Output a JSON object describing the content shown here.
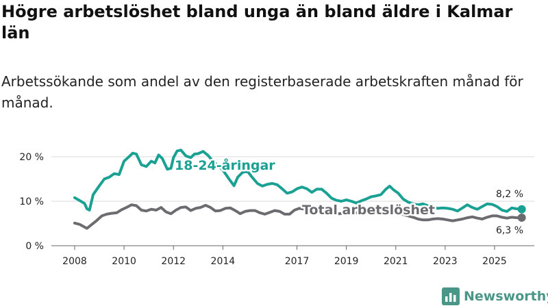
{
  "title": "Högre arbetslöshet bland unga än bland äldre i Kalmar län",
  "subtitle": "Arbetssökande som andel av den registerbaserade arbetskraften månad för månad.",
  "brand": {
    "name": "Newsworthy",
    "icon": "bar-chart-logo-icon",
    "color": "#4a9688"
  },
  "chart_data": {
    "type": "line",
    "title": "Högre arbetslöshet bland unga än bland äldre i Kalmar län",
    "ylim": [
      0,
      20.5
    ],
    "xlim": [
      2008.0,
      2026.3
    ],
    "yticks": [
      {
        "value": 0,
        "label": "0 %"
      },
      {
        "value": 10,
        "label": "10 %"
      },
      {
        "value": 20,
        "label": "20 %"
      }
    ],
    "xticks": [
      {
        "value": 2008,
        "label": "2008"
      },
      {
        "value": 2010,
        "label": "2010"
      },
      {
        "value": 2012,
        "label": "2012"
      },
      {
        "value": 2014,
        "label": "2014"
      },
      {
        "value": 2017,
        "label": "2017"
      },
      {
        "value": 2019,
        "label": "2019"
      },
      {
        "value": 2021,
        "label": "2021"
      },
      {
        "value": 2023,
        "label": "2023"
      },
      {
        "value": 2025,
        "label": "2025"
      }
    ],
    "grid": true,
    "series": [
      {
        "name": "18-24-åringar",
        "color": "#1aa194",
        "end_label": "8,2 %",
        "points": [
          [
            2008.0,
            10.8
          ],
          [
            2008.25,
            10.0
          ],
          [
            2008.4,
            9.5
          ],
          [
            2008.5,
            8.3
          ],
          [
            2008.6,
            8.0
          ],
          [
            2008.75,
            11.5
          ],
          [
            2009.0,
            13.5
          ],
          [
            2009.2,
            15.0
          ],
          [
            2009.4,
            15.4
          ],
          [
            2009.6,
            16.2
          ],
          [
            2009.8,
            16.0
          ],
          [
            2010.0,
            19.0
          ],
          [
            2010.2,
            20.0
          ],
          [
            2010.35,
            20.8
          ],
          [
            2010.5,
            20.6
          ],
          [
            2010.7,
            18.2
          ],
          [
            2010.9,
            17.8
          ],
          [
            2011.1,
            19.0
          ],
          [
            2011.25,
            18.6
          ],
          [
            2011.4,
            20.4
          ],
          [
            2011.55,
            19.6
          ],
          [
            2011.75,
            17.2
          ],
          [
            2011.9,
            17.4
          ],
          [
            2012.0,
            19.8
          ],
          [
            2012.15,
            21.3
          ],
          [
            2012.3,
            21.5
          ],
          [
            2012.5,
            20.2
          ],
          [
            2012.7,
            19.8
          ],
          [
            2012.85,
            20.6
          ],
          [
            2013.0,
            20.7
          ],
          [
            2013.2,
            21.2
          ],
          [
            2013.4,
            20.3
          ],
          [
            2013.6,
            19.0
          ],
          [
            2013.8,
            18.0
          ],
          [
            2014.0,
            17.0
          ],
          [
            2014.25,
            15.0
          ],
          [
            2014.45,
            13.5
          ],
          [
            2014.6,
            15.4
          ],
          [
            2014.8,
            16.5
          ],
          [
            2015.0,
            16.7
          ],
          [
            2015.2,
            15.3
          ],
          [
            2015.4,
            14.0
          ],
          [
            2015.6,
            13.4
          ],
          [
            2015.8,
            13.8
          ],
          [
            2016.0,
            14.0
          ],
          [
            2016.2,
            13.7
          ],
          [
            2016.4,
            12.8
          ],
          [
            2016.6,
            11.8
          ],
          [
            2016.8,
            12.1
          ],
          [
            2017.0,
            12.8
          ],
          [
            2017.2,
            13.2
          ],
          [
            2017.4,
            12.8
          ],
          [
            2017.6,
            12.0
          ],
          [
            2017.8,
            12.7
          ],
          [
            2018.0,
            12.7
          ],
          [
            2018.2,
            11.8
          ],
          [
            2018.4,
            10.7
          ],
          [
            2018.6,
            10.2
          ],
          [
            2018.8,
            10.0
          ],
          [
            2019.0,
            10.3
          ],
          [
            2019.2,
            10.0
          ],
          [
            2019.4,
            9.6
          ],
          [
            2019.6,
            10.1
          ],
          [
            2019.8,
            10.5
          ],
          [
            2020.0,
            11.0
          ],
          [
            2020.2,
            11.2
          ],
          [
            2020.4,
            11.5
          ],
          [
            2020.6,
            12.7
          ],
          [
            2020.75,
            13.4
          ],
          [
            2020.9,
            12.6
          ],
          [
            2021.1,
            11.8
          ],
          [
            2021.3,
            10.5
          ],
          [
            2021.5,
            9.8
          ],
          [
            2021.7,
            9.4
          ],
          [
            2021.9,
            9.2
          ],
          [
            2022.1,
            9.4
          ],
          [
            2022.3,
            9.0
          ],
          [
            2022.5,
            8.6
          ],
          [
            2022.7,
            8.4
          ],
          [
            2022.9,
            8.5
          ],
          [
            2023.1,
            8.4
          ],
          [
            2023.3,
            8.2
          ],
          [
            2023.5,
            7.8
          ],
          [
            2023.7,
            8.5
          ],
          [
            2023.9,
            9.2
          ],
          [
            2024.1,
            8.6
          ],
          [
            2024.3,
            8.2
          ],
          [
            2024.5,
            8.8
          ],
          [
            2024.7,
            9.4
          ],
          [
            2024.9,
            9.3
          ],
          [
            2025.1,
            8.8
          ],
          [
            2025.3,
            8.0
          ],
          [
            2025.5,
            7.7
          ],
          [
            2025.7,
            8.5
          ],
          [
            2025.9,
            8.3
          ],
          [
            2026.1,
            8.2
          ]
        ]
      },
      {
        "name": "Total arbetslöshet",
        "color": "#6b6b70",
        "end_label": "6,3 %",
        "points": [
          [
            2008.0,
            5.1
          ],
          [
            2008.2,
            4.8
          ],
          [
            2008.4,
            4.2
          ],
          [
            2008.5,
            3.9
          ],
          [
            2008.7,
            4.8
          ],
          [
            2008.9,
            5.7
          ],
          [
            2009.1,
            6.7
          ],
          [
            2009.3,
            7.1
          ],
          [
            2009.5,
            7.3
          ],
          [
            2009.7,
            7.4
          ],
          [
            2009.9,
            8.1
          ],
          [
            2010.1,
            8.6
          ],
          [
            2010.3,
            9.2
          ],
          [
            2010.5,
            9.0
          ],
          [
            2010.7,
            8.0
          ],
          [
            2010.9,
            7.8
          ],
          [
            2011.1,
            8.2
          ],
          [
            2011.3,
            8.0
          ],
          [
            2011.5,
            8.6
          ],
          [
            2011.7,
            7.6
          ],
          [
            2011.9,
            7.2
          ],
          [
            2012.1,
            8.0
          ],
          [
            2012.3,
            8.6
          ],
          [
            2012.5,
            8.7
          ],
          [
            2012.7,
            7.9
          ],
          [
            2012.9,
            8.4
          ],
          [
            2013.1,
            8.6
          ],
          [
            2013.3,
            9.1
          ],
          [
            2013.5,
            8.6
          ],
          [
            2013.7,
            7.8
          ],
          [
            2013.9,
            7.9
          ],
          [
            2014.1,
            8.4
          ],
          [
            2014.3,
            8.5
          ],
          [
            2014.5,
            7.9
          ],
          [
            2014.7,
            7.2
          ],
          [
            2014.9,
            7.7
          ],
          [
            2015.1,
            7.9
          ],
          [
            2015.3,
            7.9
          ],
          [
            2015.5,
            7.4
          ],
          [
            2015.7,
            7.1
          ],
          [
            2015.9,
            7.5
          ],
          [
            2016.1,
            7.9
          ],
          [
            2016.3,
            7.7
          ],
          [
            2016.5,
            7.1
          ],
          [
            2016.7,
            7.1
          ],
          [
            2016.9,
            8.0
          ],
          [
            2017.1,
            8.4
          ],
          [
            2017.3,
            8.2
          ],
          [
            2017.5,
            7.8
          ],
          [
            2017.7,
            7.7
          ],
          [
            2017.9,
            7.8
          ],
          [
            2018.1,
            7.9
          ],
          [
            2018.3,
            7.6
          ],
          [
            2018.5,
            7.3
          ],
          [
            2018.7,
            7.2
          ],
          [
            2018.9,
            7.3
          ],
          [
            2019.1,
            7.4
          ],
          [
            2019.3,
            7.3
          ],
          [
            2019.5,
            7.5
          ],
          [
            2019.7,
            7.7
          ],
          [
            2019.9,
            8.0
          ],
          [
            2020.1,
            8.2
          ],
          [
            2020.3,
            8.5
          ],
          [
            2020.5,
            8.2
          ],
          [
            2020.7,
            8.0
          ],
          [
            2020.9,
            7.8
          ],
          [
            2021.1,
            7.3
          ],
          [
            2021.3,
            7.0
          ],
          [
            2021.5,
            6.7
          ],
          [
            2021.7,
            6.4
          ],
          [
            2021.9,
            6.0
          ],
          [
            2022.1,
            5.8
          ],
          [
            2022.3,
            5.8
          ],
          [
            2022.5,
            6.0
          ],
          [
            2022.7,
            6.1
          ],
          [
            2022.9,
            6.0
          ],
          [
            2023.1,
            5.8
          ],
          [
            2023.3,
            5.6
          ],
          [
            2023.5,
            5.8
          ],
          [
            2023.7,
            6.0
          ],
          [
            2023.9,
            6.3
          ],
          [
            2024.1,
            6.5
          ],
          [
            2024.3,
            6.2
          ],
          [
            2024.5,
            6.0
          ],
          [
            2024.7,
            6.4
          ],
          [
            2024.9,
            6.7
          ],
          [
            2025.1,
            6.7
          ],
          [
            2025.3,
            6.4
          ],
          [
            2025.5,
            6.2
          ],
          [
            2025.7,
            6.4
          ],
          [
            2025.9,
            6.3
          ],
          [
            2026.1,
            6.3
          ]
        ]
      }
    ]
  }
}
